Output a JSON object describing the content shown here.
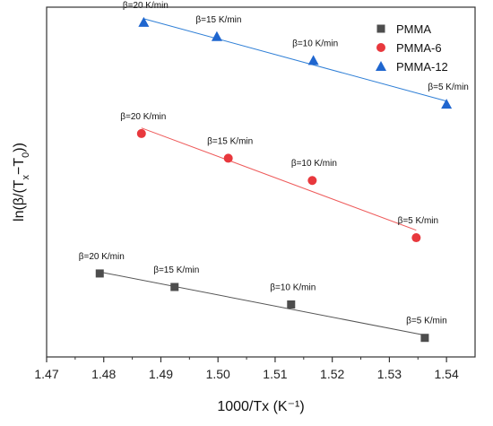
{
  "chart_data": {
    "type": "scatter",
    "title": "",
    "xlabel": "1000/Tx (K⁻¹)",
    "ylabel": "ln(β/(Tx−T0))",
    "xlim": [
      1.47,
      1.545
    ],
    "x_ticks": [
      "1.47",
      "1.48",
      "1.49",
      "1.50",
      "1.51",
      "1.52",
      "1.53",
      "1.54"
    ],
    "y_ticks_shown": false,
    "grid": false,
    "legend_position": "top-right",
    "series": [
      {
        "name": "PMMA",
        "marker": "square",
        "color": "#4d4d4d",
        "line_color": "#555555",
        "x": [
          1.4793,
          1.4924,
          1.5128,
          1.5362
        ],
        "y": [
          0.375,
          0.29,
          0.18,
          -0.03
        ],
        "labels": [
          "β=20 K/min",
          "β=15 K/min",
          "β=10 K/min",
          "β=5 K/min"
        ]
      },
      {
        "name": "PMMA-6",
        "marker": "circle",
        "color": "#e8383d",
        "line_color": "#ee5a5a",
        "x": [
          1.4866,
          1.5018,
          1.5165,
          1.5347
        ],
        "y": [
          1.255,
          1.1,
          0.96,
          0.6
        ],
        "labels": [
          "β=20 K/min",
          "β=15 K/min",
          "β=10 K/min",
          "β=5 K/min"
        ]
      },
      {
        "name": "PMMA-12",
        "marker": "triangle",
        "color": "#1f66cf",
        "line_color": "#2f7fd6",
        "x": [
          1.487,
          1.4998,
          1.5167,
          1.54
        ],
        "y": [
          1.955,
          1.865,
          1.715,
          1.44
        ],
        "labels": [
          "β=20 K/min",
          "β=15 K/min",
          "β=10 K/min",
          "β=5 K/min"
        ]
      }
    ]
  },
  "labels": {
    "ylabel_main": "ln(β/(T",
    "ylabel_sub1": "x",
    "ylabel_mid": "−T",
    "ylabel_sub2": "0",
    "ylabel_end": "))"
  }
}
